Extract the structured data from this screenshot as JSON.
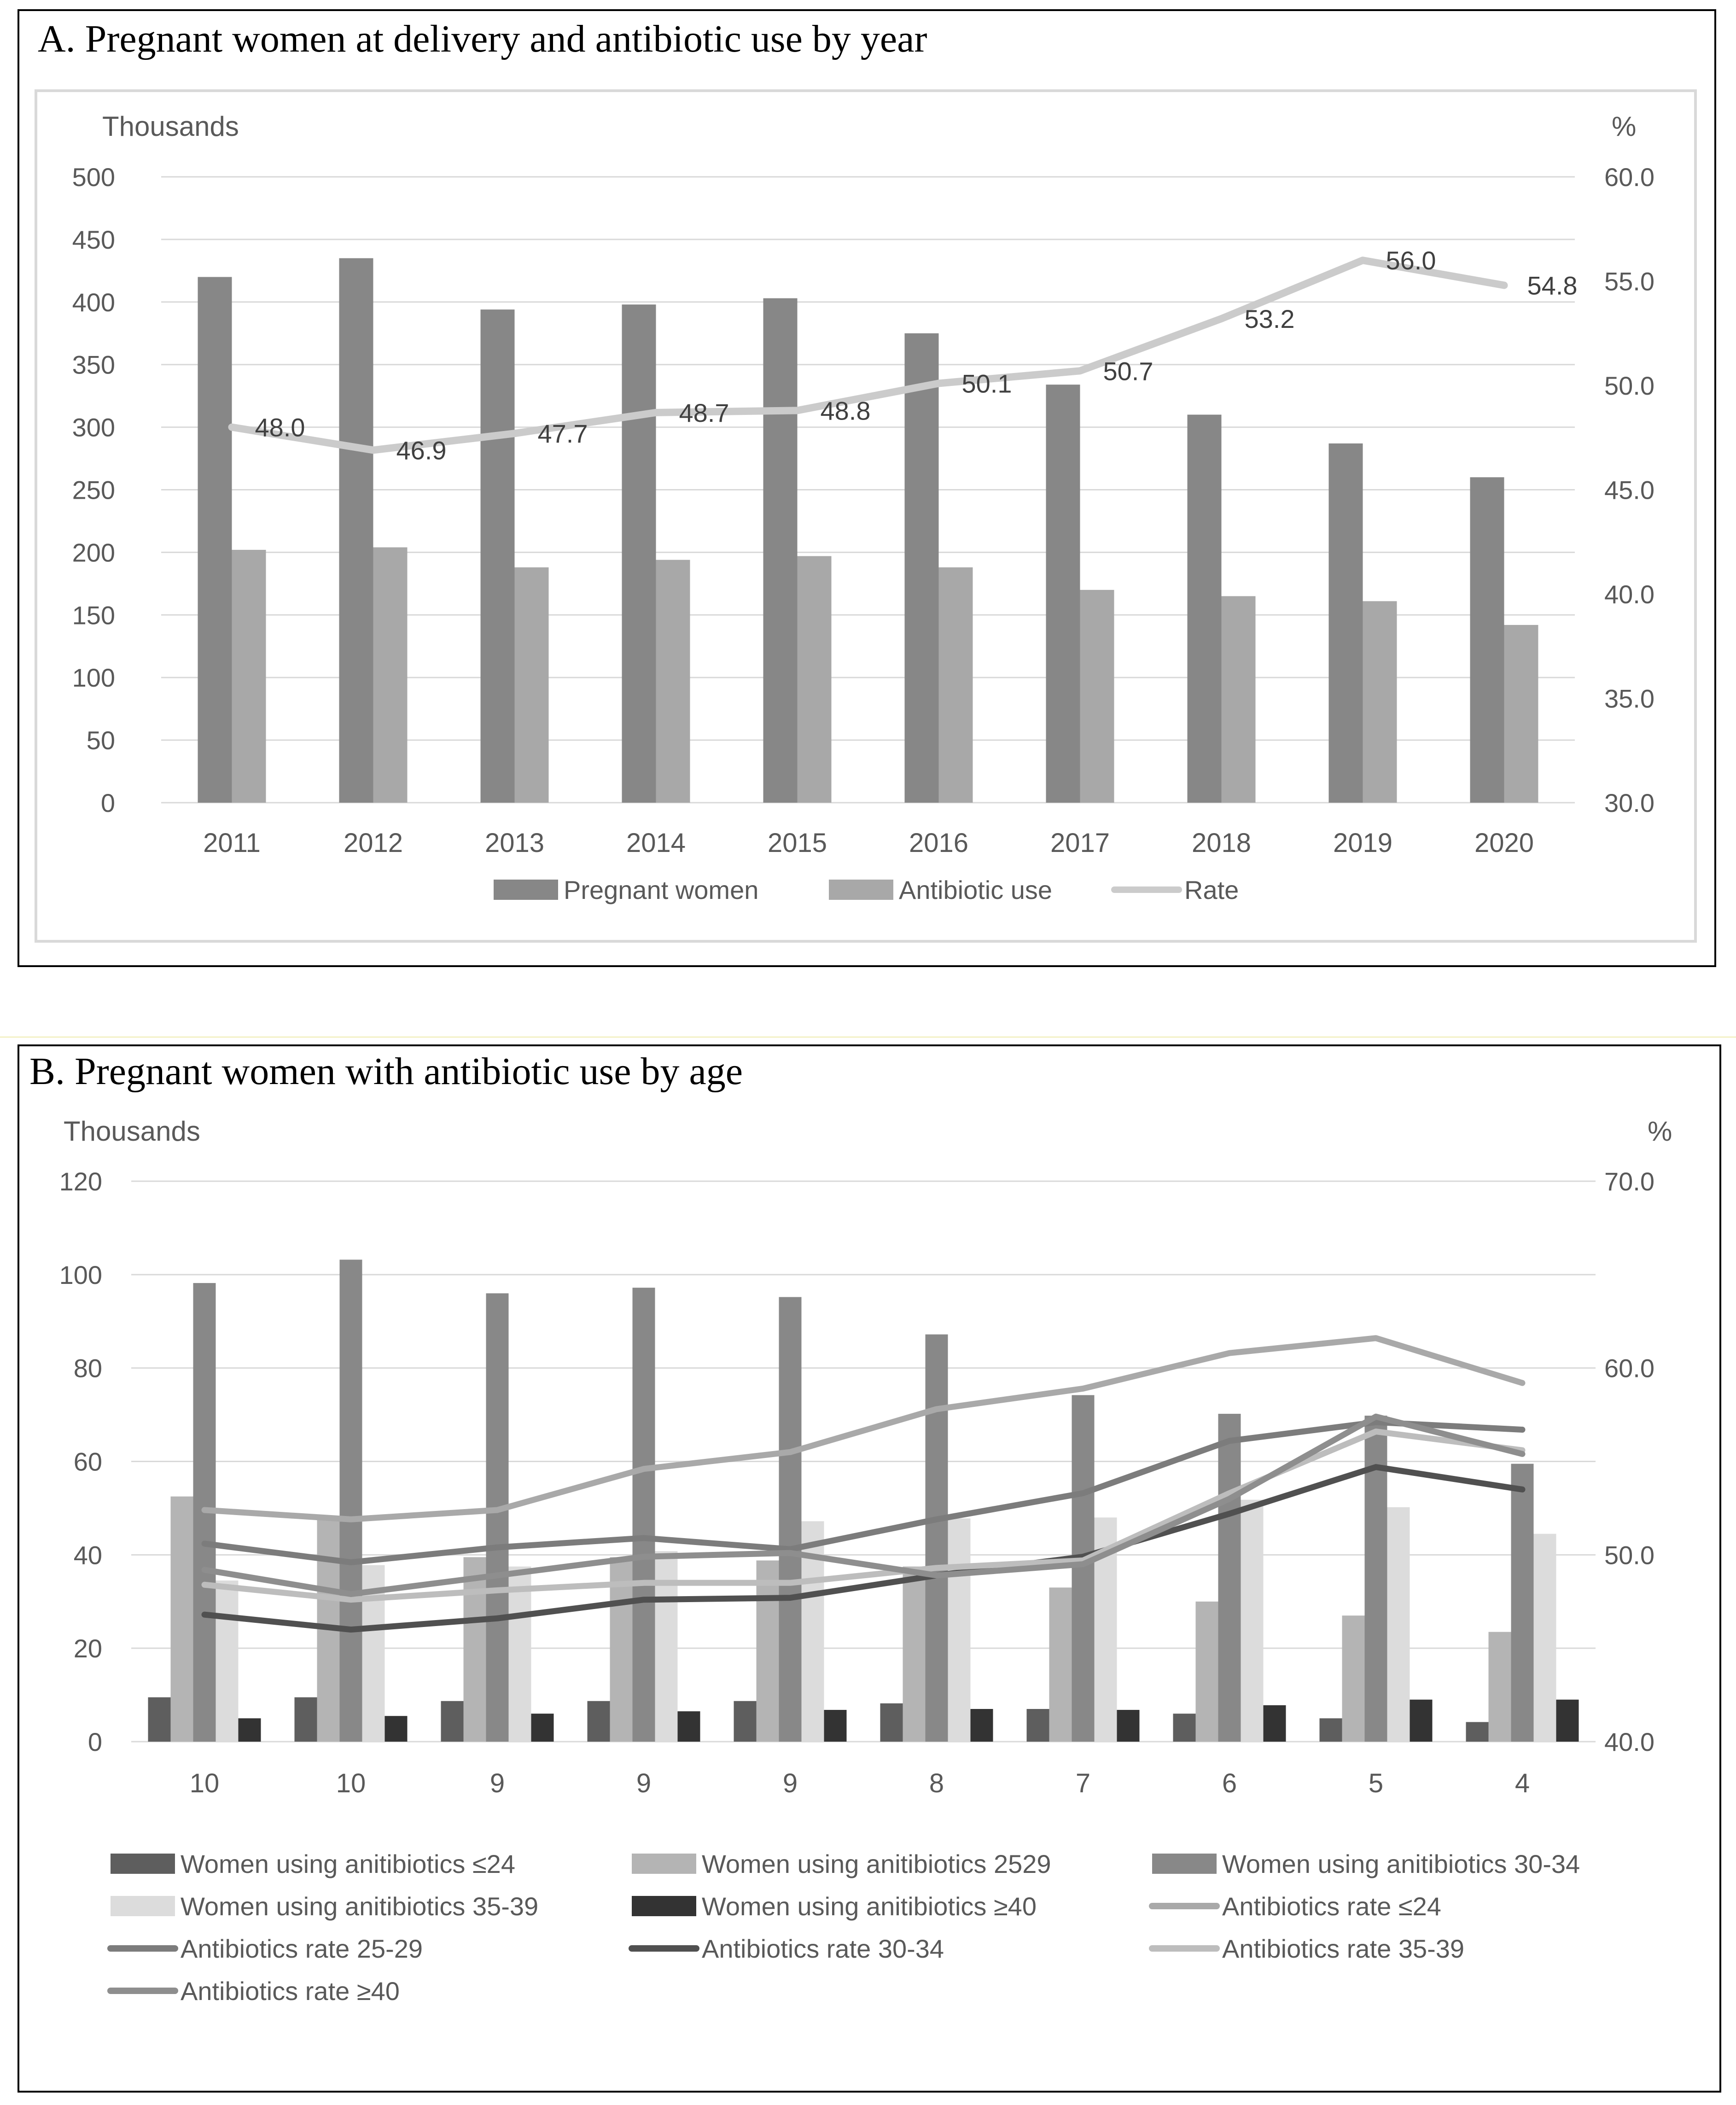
{
  "chart_data": [
    {
      "type": "bar",
      "title": "A. Pregnant women at delivery and antibiotic use by year",
      "ylabel": "Thousands",
      "y2label": "%",
      "ylim": [
        0,
        500
      ],
      "y2lim": [
        30.0,
        60.0
      ],
      "yticks": [
        "0",
        "50",
        "100",
        "150",
        "200",
        "250",
        "300",
        "350",
        "400",
        "450",
        "500"
      ],
      "y2ticks": [
        "30.0",
        "35.0",
        "40.0",
        "45.0",
        "50.0",
        "55.0",
        "60.0"
      ],
      "categories": [
        "2011",
        "2012",
        "2013",
        "2014",
        "2015",
        "2016",
        "2017",
        "2018",
        "2019",
        "2020"
      ],
      "series": [
        {
          "name": "Pregnant women",
          "kind": "bar",
          "axis": "left",
          "color": "#878787",
          "values": [
            420,
            435,
            394,
            398,
            403,
            375,
            334,
            310,
            287,
            260
          ]
        },
        {
          "name": "Antibiotic use",
          "kind": "bar",
          "axis": "left",
          "color": "#a8a8a8",
          "values": [
            202,
            204,
            188,
            194,
            197,
            188,
            170,
            165,
            161,
            142
          ]
        },
        {
          "name": "Rate",
          "kind": "line",
          "axis": "right",
          "color": "#cbcbcb",
          "values": [
            48.0,
            46.9,
            47.7,
            48.7,
            48.8,
            50.1,
            50.7,
            53.2,
            56.0,
            54.8
          ],
          "labels": [
            "48.0",
            "46.9",
            "47.7",
            "48.7",
            "48.8",
            "50.1",
            "50.7",
            "53.2",
            "56.0",
            "54.8"
          ]
        }
      ],
      "legend": "bottom",
      "grid": true
    },
    {
      "type": "bar",
      "title": "B. Pregnant women with antibiotic use by age",
      "ylabel": "Thousands",
      "y2label": "%",
      "ylim": [
        0,
        120
      ],
      "y2lim": [
        40.0,
        70.0
      ],
      "yticks": [
        "0",
        "20",
        "40",
        "60",
        "80",
        "100",
        "120"
      ],
      "y2ticks": [
        "40.0",
        "50.0",
        "60.0",
        "70.0"
      ],
      "categories": [
        "10",
        "10",
        "9",
        "9",
        "9",
        "8",
        "7",
        "6",
        "5",
        "4"
      ],
      "series": [
        {
          "name": "Women using anitibiotics ≤24",
          "kind": "bar",
          "axis": "left",
          "color": "#5e5e5e",
          "values": [
            9.5,
            9.5,
            8.7,
            8.7,
            8.7,
            8.2,
            7.0,
            6.0,
            5.0,
            4.2
          ]
        },
        {
          "name": "Women using anitibiotics 2529",
          "kind": "bar",
          "axis": "left",
          "color": "#b4b4b4",
          "values": [
            52.5,
            47.5,
            39.5,
            39.5,
            38.8,
            37.5,
            33.0,
            30.0,
            27.0,
            23.5
          ]
        },
        {
          "name": "Women using anitibiotics 30-34",
          "kind": "bar",
          "axis": "left",
          "color": "#888888",
          "values": [
            98.2,
            103.2,
            96.0,
            97.2,
            95.2,
            87.2,
            74.2,
            70.2,
            69.8,
            59.5
          ]
        },
        {
          "name": "Women using anitibiotics 35-39",
          "kind": "bar",
          "axis": "left",
          "color": "#dcdcdc",
          "values": [
            34.5,
            37.8,
            37.5,
            40.8,
            47.2,
            47.8,
            48.0,
            51.8,
            50.2,
            44.5
          ]
        },
        {
          "name": "Women using anitibiotics ≥40",
          "kind": "bar",
          "axis": "left",
          "color": "#333333",
          "values": [
            5.0,
            5.5,
            6.0,
            6.5,
            6.8,
            7.0,
            6.8,
            7.8,
            9.0,
            9.0
          ]
        },
        {
          "name": "Antibiotics rate ≤24",
          "kind": "line",
          "axis": "right",
          "color": "#a9a9a9",
          "values": [
            52.4,
            51.9,
            52.4,
            54.6,
            55.5,
            57.8,
            58.9,
            60.8,
            61.6,
            59.2
          ]
        },
        {
          "name": "Antibiotics rate 25-29",
          "kind": "line",
          "axis": "right",
          "color": "#7c7c7c",
          "values": [
            50.6,
            49.6,
            50.4,
            50.9,
            50.3,
            51.9,
            53.3,
            56.1,
            57.1,
            56.7
          ]
        },
        {
          "name": "Antibiotics rate 30-34",
          "kind": "line",
          "axis": "right",
          "color": "#505050",
          "values": [
            46.8,
            46.0,
            46.6,
            47.6,
            47.7,
            48.9,
            49.9,
            52.2,
            54.7,
            53.5
          ]
        },
        {
          "name": "Antibiotics rate 35-39",
          "kind": "line",
          "axis": "right",
          "color": "#bdbdbd",
          "values": [
            48.4,
            47.6,
            48.1,
            48.5,
            48.5,
            49.3,
            49.7,
            53.3,
            56.6,
            55.6
          ]
        },
        {
          "name": "Antibiotics rate ≥40",
          "kind": "line",
          "axis": "right",
          "color": "#8e8e8e",
          "values": [
            49.2,
            47.9,
            48.9,
            49.9,
            50.1,
            48.9,
            49.5,
            53.0,
            57.4,
            55.4
          ]
        }
      ],
      "legend": "bottom",
      "grid": true
    }
  ]
}
